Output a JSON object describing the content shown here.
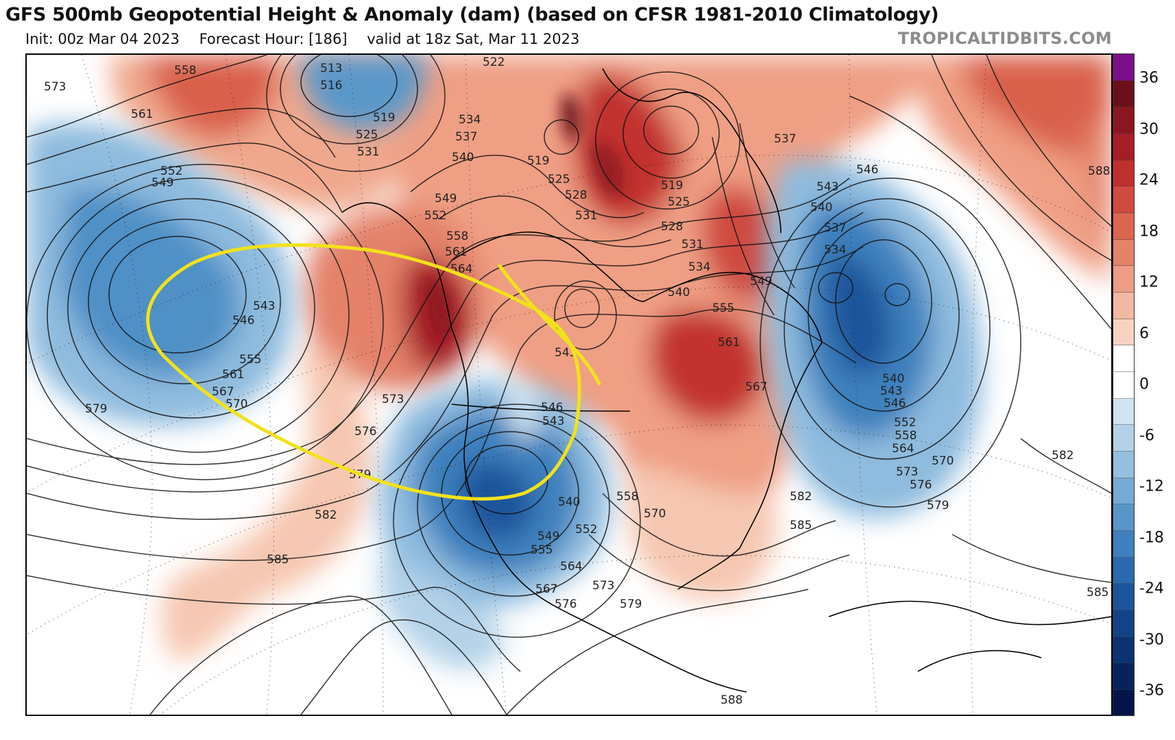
{
  "header": {
    "title": "GFS 500mb Geopotential Height & Anomaly (dam) (based on CFSR 1981-2010 Climatology)",
    "init": "Init: 00z Mar 04 2023",
    "forecast_hour": "Forecast Hour: [186]",
    "valid": "valid at 18z Sat, Mar 11 2023",
    "brand": "TROPICALTIDBITS.COM"
  },
  "colorbar": {
    "ticks": [
      "36",
      "30",
      "24",
      "18",
      "12",
      "6",
      "0",
      "-6",
      "-12",
      "-18",
      "-24",
      "-30",
      "-36"
    ],
    "colors": [
      "#7b0f8a",
      "#6b0f1a",
      "#8c1620",
      "#a51e26",
      "#bf2f2e",
      "#cf4a3f",
      "#db6650",
      "#e4826a",
      "#ec9d84",
      "#f2b8a1",
      "#f8d3c1",
      "#ffffff",
      "#ffffff",
      "#cfe3f0",
      "#b3d2e8",
      "#95bfdf",
      "#76abd5",
      "#5896c9",
      "#3d80bd",
      "#2a6aae",
      "#1c559b",
      "#124386",
      "#0c3272",
      "#07235b",
      "#05154a"
    ]
  },
  "map": {
    "contour_labels": [
      "573",
      "558",
      "561",
      "552",
      "549",
      "543",
      "546",
      "555",
      "561",
      "567",
      "570",
      "579",
      "513",
      "516",
      "519",
      "525",
      "531",
      "522",
      "534",
      "537",
      "540",
      "519",
      "525",
      "528",
      "549",
      "552",
      "558",
      "561",
      "564",
      "573",
      "576",
      "579",
      "582",
      "585",
      "531",
      "519",
      "525",
      "528",
      "531",
      "534",
      "540",
      "543",
      "537",
      "546",
      "543",
      "540",
      "537",
      "534",
      "549",
      "555",
      "561",
      "567",
      "546",
      "543",
      "540",
      "549",
      "552",
      "555",
      "564",
      "567",
      "573",
      "576",
      "579",
      "558",
      "570",
      "540",
      "543",
      "546",
      "552",
      "558",
      "564",
      "570",
      "573",
      "576",
      "579",
      "582",
      "588",
      "582",
      "585",
      "585",
      "588"
    ],
    "annotation": "yellow hand-drawn outline"
  }
}
